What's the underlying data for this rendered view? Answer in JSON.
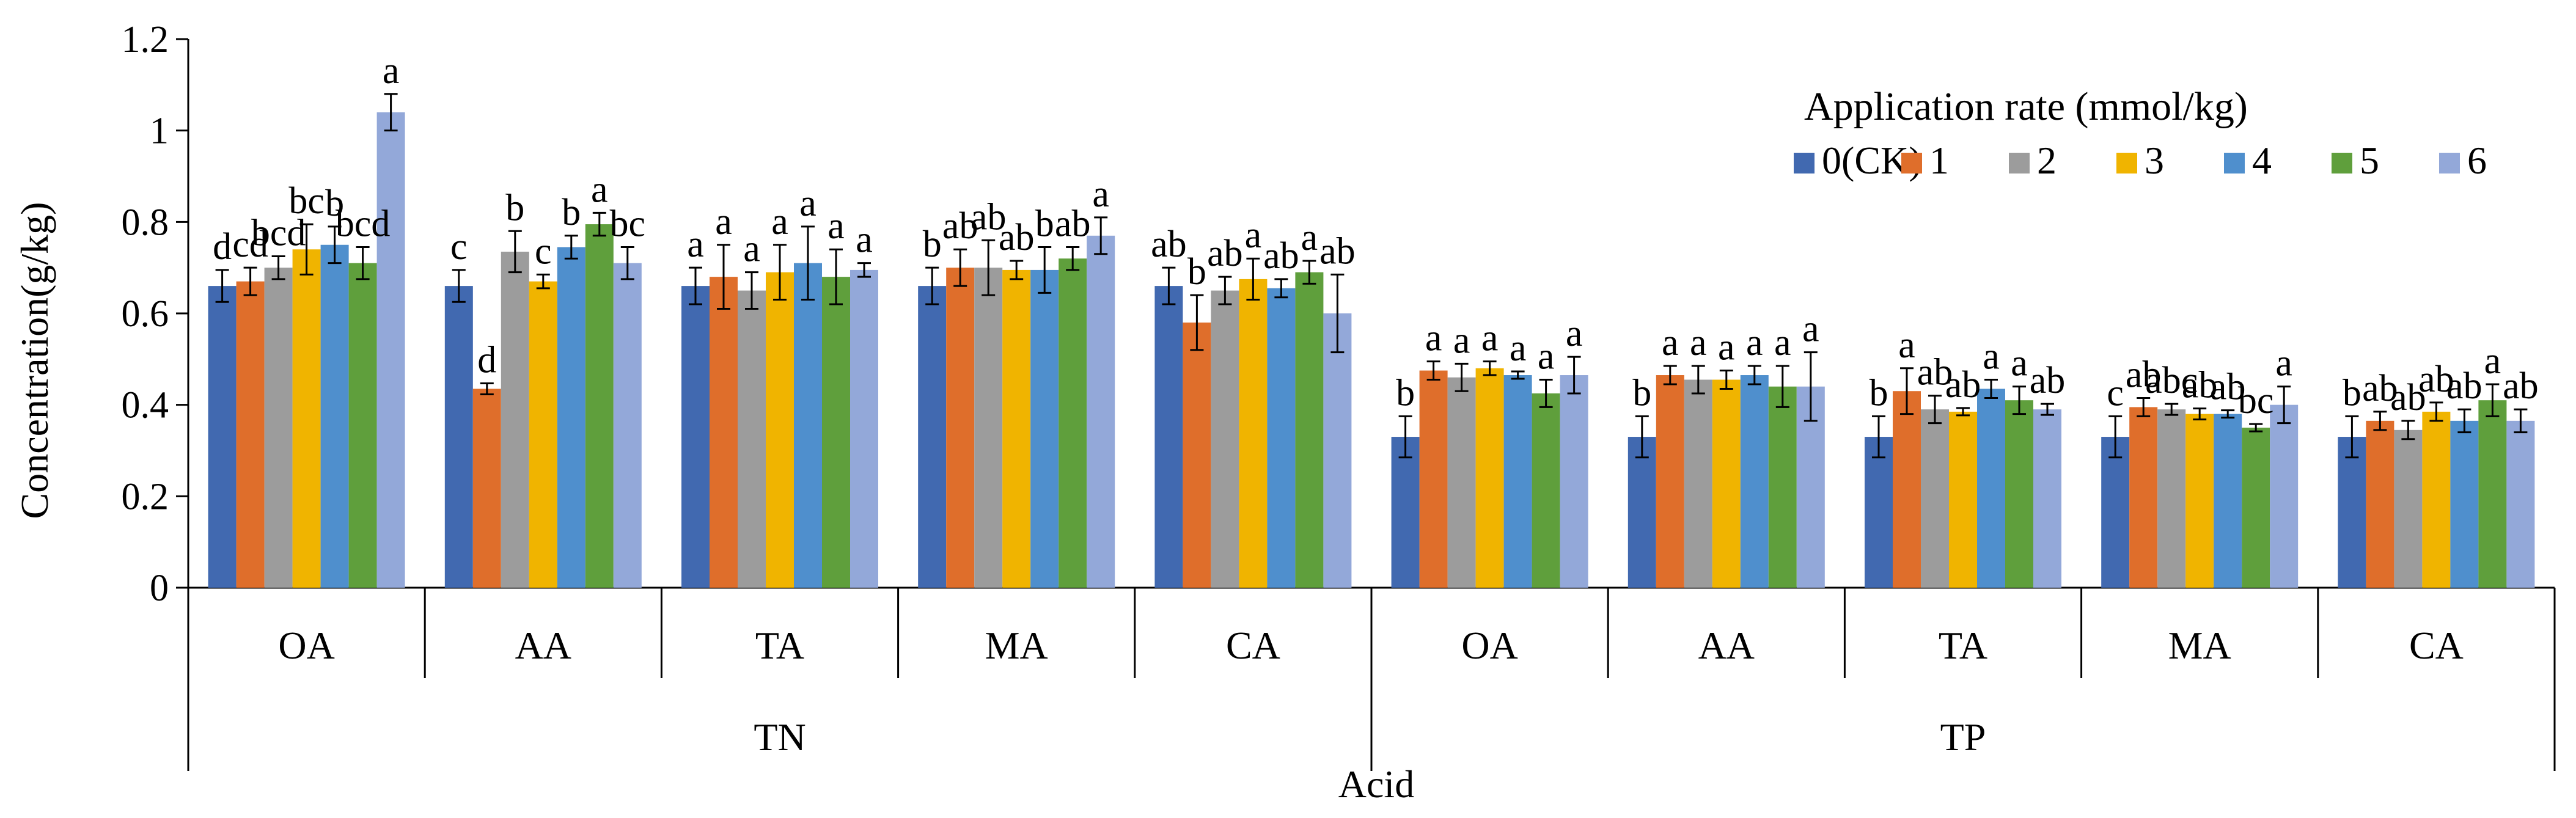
{
  "colors": [
    "#4169b0",
    "#df6e2b",
    "#9c9c9c",
    "#f0b400",
    "#4f8fcd",
    "#5f9f3c",
    "#93a8d9"
  ],
  "chart_data": {
    "type": "bar",
    "title": "",
    "ylabel": "Concentration(g/kg)",
    "xlabel": "Acid",
    "ylim": [
      0,
      1.2
    ],
    "yticks": [
      "0",
      "0.2",
      "0.4",
      "0.6",
      "0.8",
      "1",
      "1.2"
    ],
    "legend": {
      "title": "Application rate (mmol/kg)",
      "position": "top-right",
      "entries": [
        "0(CK)",
        "1",
        "2",
        "3",
        "4",
        "5",
        "6"
      ]
    },
    "supergroups": [
      {
        "label": "TN",
        "span": [
          0,
          4
        ]
      },
      {
        "label": "TP",
        "span": [
          5,
          9
        ]
      }
    ],
    "groups": [
      {
        "label": "OA",
        "values": [
          0.66,
          0.67,
          0.7,
          0.74,
          0.75,
          0.71,
          1.04
        ],
        "errors": [
          0.035,
          0.03,
          0.025,
          0.055,
          0.04,
          0.035,
          0.04
        ],
        "letters": [
          "d",
          "cd",
          "bcd",
          "bc",
          "b",
          "bcd",
          "a"
        ]
      },
      {
        "label": "AA",
        "values": [
          0.66,
          0.435,
          0.735,
          0.67,
          0.745,
          0.795,
          0.71
        ],
        "errors": [
          0.035,
          0.012,
          0.045,
          0.015,
          0.025,
          0.025,
          0.035
        ],
        "letters": [
          "c",
          "d",
          "b",
          "c",
          "b",
          "a",
          "bc"
        ]
      },
      {
        "label": "TA",
        "values": [
          0.66,
          0.68,
          0.65,
          0.69,
          0.71,
          0.68,
          0.695
        ],
        "errors": [
          0.04,
          0.07,
          0.04,
          0.06,
          0.08,
          0.06,
          0.015
        ],
        "letters": [
          "a",
          "a",
          "a",
          "a",
          "a",
          "a",
          "a"
        ]
      },
      {
        "label": "MA",
        "values": [
          0.66,
          0.7,
          0.7,
          0.695,
          0.695,
          0.72,
          0.77
        ],
        "errors": [
          0.04,
          0.04,
          0.06,
          0.02,
          0.05,
          0.025,
          0.04
        ],
        "letters": [
          "b",
          "ab",
          "ab",
          "ab",
          "b",
          "ab",
          "a"
        ]
      },
      {
        "label": "CA",
        "values": [
          0.66,
          0.58,
          0.65,
          0.675,
          0.655,
          0.69,
          0.6
        ],
        "errors": [
          0.04,
          0.06,
          0.03,
          0.045,
          0.02,
          0.025,
          0.085
        ],
        "letters": [
          "ab",
          "b",
          "ab",
          "a",
          "ab",
          "a",
          "ab"
        ]
      },
      {
        "label": "OA",
        "values": [
          0.33,
          0.475,
          0.46,
          0.48,
          0.465,
          0.425,
          0.465
        ],
        "errors": [
          0.045,
          0.02,
          0.03,
          0.015,
          0.008,
          0.03,
          0.04
        ],
        "letters": [
          "b",
          "a",
          "a",
          "a",
          "a",
          "a",
          "a"
        ]
      },
      {
        "label": "AA",
        "values": [
          0.33,
          0.465,
          0.455,
          0.455,
          0.465,
          0.44,
          0.44
        ],
        "errors": [
          0.045,
          0.02,
          0.03,
          0.02,
          0.02,
          0.045,
          0.075
        ],
        "letters": [
          "b",
          "a",
          "a",
          "a",
          "a",
          "a",
          "a"
        ]
      },
      {
        "label": "TA",
        "values": [
          0.33,
          0.43,
          0.39,
          0.385,
          0.435,
          0.41,
          0.39
        ],
        "errors": [
          0.045,
          0.05,
          0.03,
          0.008,
          0.02,
          0.03,
          0.012
        ],
        "letters": [
          "b",
          "a",
          "ab",
          "ab",
          "a",
          "a",
          "ab"
        ]
      },
      {
        "label": "MA",
        "values": [
          0.33,
          0.395,
          0.39,
          0.38,
          0.38,
          0.35,
          0.4
        ],
        "errors": [
          0.045,
          0.02,
          0.012,
          0.012,
          0.008,
          0.008,
          0.04
        ],
        "letters": [
          "c",
          "ab",
          "abc",
          "ab",
          "ab",
          "bc",
          "a"
        ]
      },
      {
        "label": "CA",
        "values": [
          0.33,
          0.365,
          0.345,
          0.385,
          0.365,
          0.41,
          0.365
        ],
        "errors": [
          0.045,
          0.02,
          0.02,
          0.02,
          0.025,
          0.035,
          0.025
        ],
        "letters": [
          "b",
          "ab",
          "ab",
          "ab",
          "ab",
          "a",
          "ab"
        ]
      }
    ]
  }
}
